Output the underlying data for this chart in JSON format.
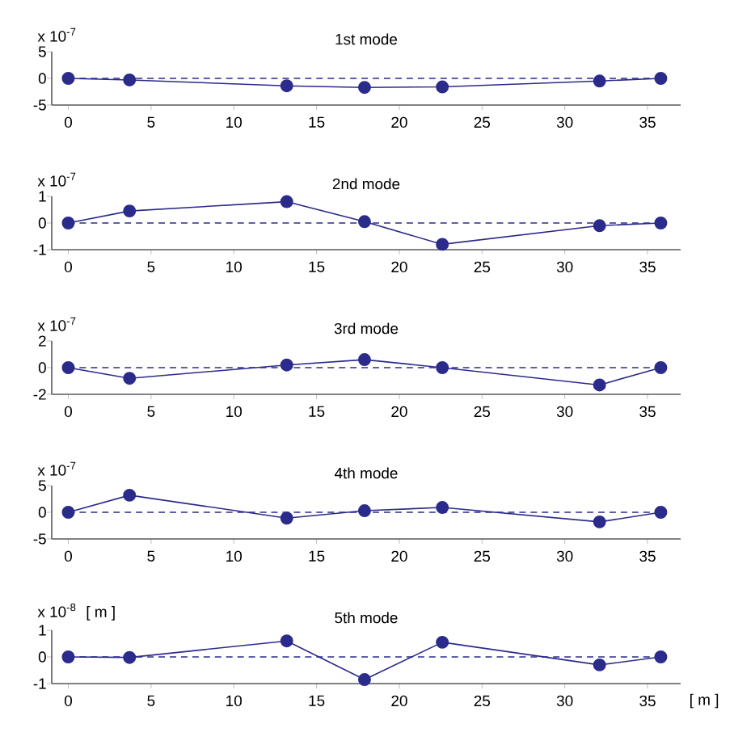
{
  "chart_data": [
    {
      "type": "line",
      "title": "1st mode",
      "annotations": [
        "x 10$^{-7}$"
      ],
      "x": [
        0,
        3.7,
        13.2,
        17.9,
        22.6,
        32.1,
        35.8
      ],
      "series": [
        {
          "color": "#2b2b8c",
          "values": [
            0,
            -0.3,
            -1.4,
            -1.7,
            -1.6,
            -0.5,
            0
          ]
        }
      ],
      "xlim": [
        -1,
        37
      ],
      "xticks": [
        0,
        5,
        10,
        15,
        20,
        25,
        30,
        35
      ],
      "ylim": [
        -5,
        5
      ],
      "yticks": [
        -5,
        0,
        5
      ],
      "marker": "circle",
      "grid": false,
      "ref_lines": [
        {
          "axis": "y",
          "value": 0,
          "color": "#2b2b8c",
          "line_style": "dashed"
        }
      ]
    },
    {
      "type": "line",
      "title": "2nd mode",
      "annotations": [
        "x 10$^{-7}$"
      ],
      "x": [
        0,
        3.7,
        13.2,
        17.9,
        22.6,
        32.1,
        35.8
      ],
      "series": [
        {
          "color": "#2b2b8c",
          "values": [
            0,
            0.45,
            0.8,
            0.05,
            -0.8,
            -0.1,
            0
          ]
        }
      ],
      "xlim": [
        -1,
        37
      ],
      "xticks": [
        0,
        5,
        10,
        15,
        20,
        25,
        30,
        35
      ],
      "ylim": [
        -1,
        1
      ],
      "yticks": [
        -1,
        0,
        1
      ],
      "marker": "circle",
      "grid": false,
      "ref_lines": [
        {
          "axis": "y",
          "value": 0,
          "color": "#2b2b8c",
          "line_style": "dashed"
        }
      ]
    },
    {
      "type": "line",
      "title": "3rd mode",
      "annotations": [
        "x 10$^{-7}$"
      ],
      "x": [
        0,
        3.7,
        13.2,
        17.9,
        22.6,
        32.1,
        35.8
      ],
      "series": [
        {
          "color": "#2b2b8c",
          "values": [
            0,
            -0.8,
            0.2,
            0.6,
            0,
            -1.3,
            0
          ]
        }
      ],
      "xlim": [
        -1,
        37
      ],
      "xticks": [
        0,
        5,
        10,
        15,
        20,
        25,
        30,
        35
      ],
      "ylim": [
        -2,
        2
      ],
      "yticks": [
        -2,
        0,
        2
      ],
      "marker": "circle",
      "grid": false,
      "ref_lines": [
        {
          "axis": "y",
          "value": 0,
          "color": "#2b2b8c",
          "line_style": "dashed"
        }
      ]
    },
    {
      "type": "line",
      "title": "4th mode",
      "annotations": [
        "x 10$^{-7}$"
      ],
      "x": [
        0,
        3.7,
        13.2,
        17.9,
        22.6,
        32.1,
        35.8
      ],
      "series": [
        {
          "color": "#2b2b8c",
          "values": [
            0,
            3.2,
            -1.1,
            0.3,
            0.9,
            -1.8,
            0
          ]
        }
      ],
      "xlim": [
        -1,
        37
      ],
      "xticks": [
        0,
        5,
        10,
        15,
        20,
        25,
        30,
        35
      ],
      "ylim": [
        -5,
        5
      ],
      "yticks": [
        -5,
        0,
        5
      ],
      "marker": "circle",
      "grid": false,
      "ref_lines": [
        {
          "axis": "y",
          "value": 0,
          "color": "#2b2b8c",
          "line_style": "dashed"
        }
      ]
    },
    {
      "type": "line",
      "title": "5th mode",
      "xlabel": "[ m ]",
      "annotations": [
        "x 10$^{-8}$",
        "[ m ]"
      ],
      "x": [
        0,
        3.7,
        13.2,
        17.9,
        22.6,
        32.1,
        35.8
      ],
      "series": [
        {
          "color": "#2b2b8c",
          "values": [
            0,
            -0.02,
            0.6,
            -0.85,
            0.55,
            -0.3,
            0
          ]
        }
      ],
      "xlim": [
        -1,
        37
      ],
      "xticks": [
        0,
        5,
        10,
        15,
        20,
        25,
        30,
        35
      ],
      "ylim": [
        -1,
        1
      ],
      "yticks": [
        -1,
        0,
        1
      ],
      "marker": "circle",
      "grid": false,
      "ref_lines": [
        {
          "axis": "y",
          "value": 0,
          "color": "#2b2b8c",
          "line_style": "dashed"
        }
      ]
    }
  ]
}
